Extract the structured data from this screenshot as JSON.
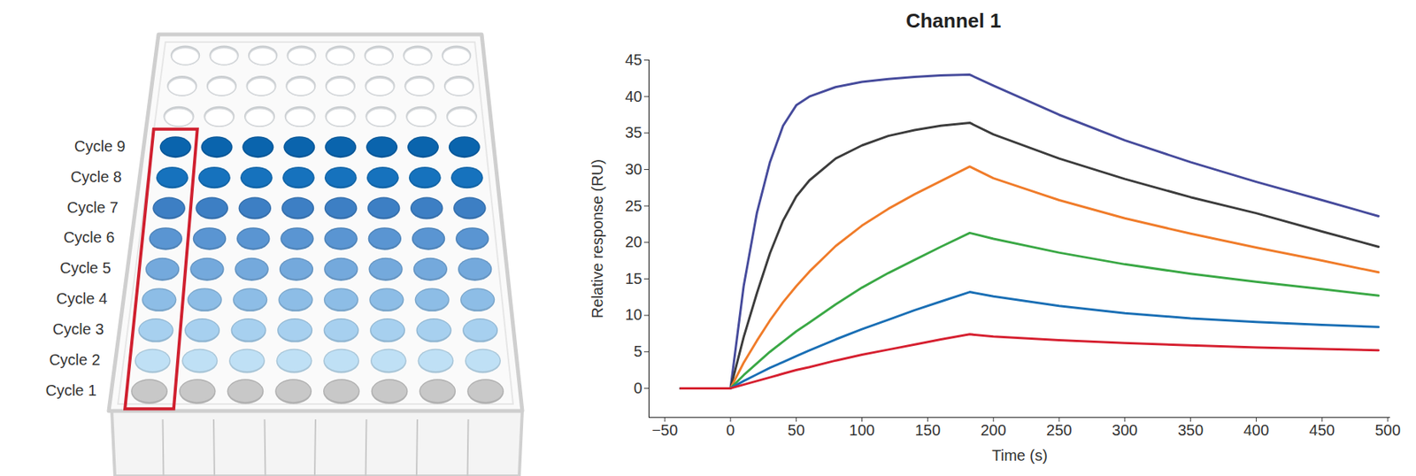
{
  "chart_data": {
    "type": "line",
    "title": "Channel 1",
    "x_label": "Time (s)",
    "y_label": "Relative response (RU)",
    "x": [
      -38,
      0,
      10,
      20,
      30,
      40,
      50,
      60,
      80,
      100,
      120,
      140,
      160,
      182,
      200,
      250,
      300,
      350,
      400,
      450,
      493
    ],
    "series": [
      {
        "color": "#464b9c",
        "values": [
          0,
          0,
          14,
          24,
          31,
          36,
          38.8,
          40,
          41.3,
          42,
          42.4,
          42.7,
          42.9,
          43,
          41.5,
          37.5,
          34,
          31,
          28.3,
          25.8,
          23.6
        ]
      },
      {
        "color": "#3c3c3c",
        "values": [
          0,
          0,
          7,
          13,
          18.5,
          23,
          26.3,
          28.5,
          31.5,
          33.3,
          34.6,
          35.4,
          36,
          36.4,
          34.8,
          31.5,
          28.7,
          26.2,
          24,
          21.5,
          19.4
        ]
      },
      {
        "color": "#f07c2a",
        "values": [
          0,
          0,
          3.5,
          6.5,
          9.3,
          11.8,
          14,
          16,
          19.5,
          22.3,
          24.6,
          26.6,
          28.4,
          30.4,
          28.8,
          25.8,
          23.3,
          21.2,
          19.3,
          17.5,
          15.9
        ]
      },
      {
        "color": "#3aa845",
        "values": [
          0,
          0,
          1.8,
          3.4,
          5,
          6.4,
          7.8,
          9,
          11.5,
          13.8,
          15.8,
          17.6,
          19.4,
          21.3,
          20.5,
          18.6,
          17,
          15.7,
          14.6,
          13.6,
          12.7
        ]
      },
      {
        "color": "#1a6fb5",
        "values": [
          0,
          0,
          1,
          1.9,
          2.8,
          3.6,
          4.4,
          5.2,
          6.7,
          8.1,
          9.4,
          10.7,
          11.9,
          13.2,
          12.6,
          11.3,
          10.3,
          9.6,
          9.1,
          8.7,
          8.4
        ]
      },
      {
        "color": "#d62030",
        "values": [
          0,
          0,
          0.5,
          1,
          1.5,
          2,
          2.5,
          2.9,
          3.8,
          4.6,
          5.3,
          6,
          6.7,
          7.4,
          7.1,
          6.6,
          6.2,
          5.9,
          5.6,
          5.4,
          5.2
        ]
      }
    ],
    "xlim": [
      -62,
      502
    ],
    "ylim": [
      -4,
      45
    ],
    "xticks": [
      -50,
      0,
      50,
      100,
      150,
      200,
      250,
      300,
      350,
      400,
      450,
      500
    ],
    "yticks": [
      0,
      5,
      10,
      15,
      20,
      25,
      30,
      35,
      40,
      45
    ],
    "grid": false
  },
  "plate": {
    "columns": 8,
    "empty_rows": 3,
    "rows": [
      {
        "label": "Cycle 9",
        "color": "#0a64ad"
      },
      {
        "label": "Cycle 8",
        "color": "#1672bd"
      },
      {
        "label": "Cycle 7",
        "color": "#3d7fc4"
      },
      {
        "label": "Cycle 6",
        "color": "#5a95d2"
      },
      {
        "label": "Cycle 5",
        "color": "#74a9dc"
      },
      {
        "label": "Cycle 4",
        "color": "#8dbde6"
      },
      {
        "label": "Cycle 3",
        "color": "#a7d0ef"
      },
      {
        "label": "Cycle 2",
        "color": "#bfe0f5"
      },
      {
        "label": "Cycle 1",
        "color": "#c8c8c8"
      }
    ]
  }
}
